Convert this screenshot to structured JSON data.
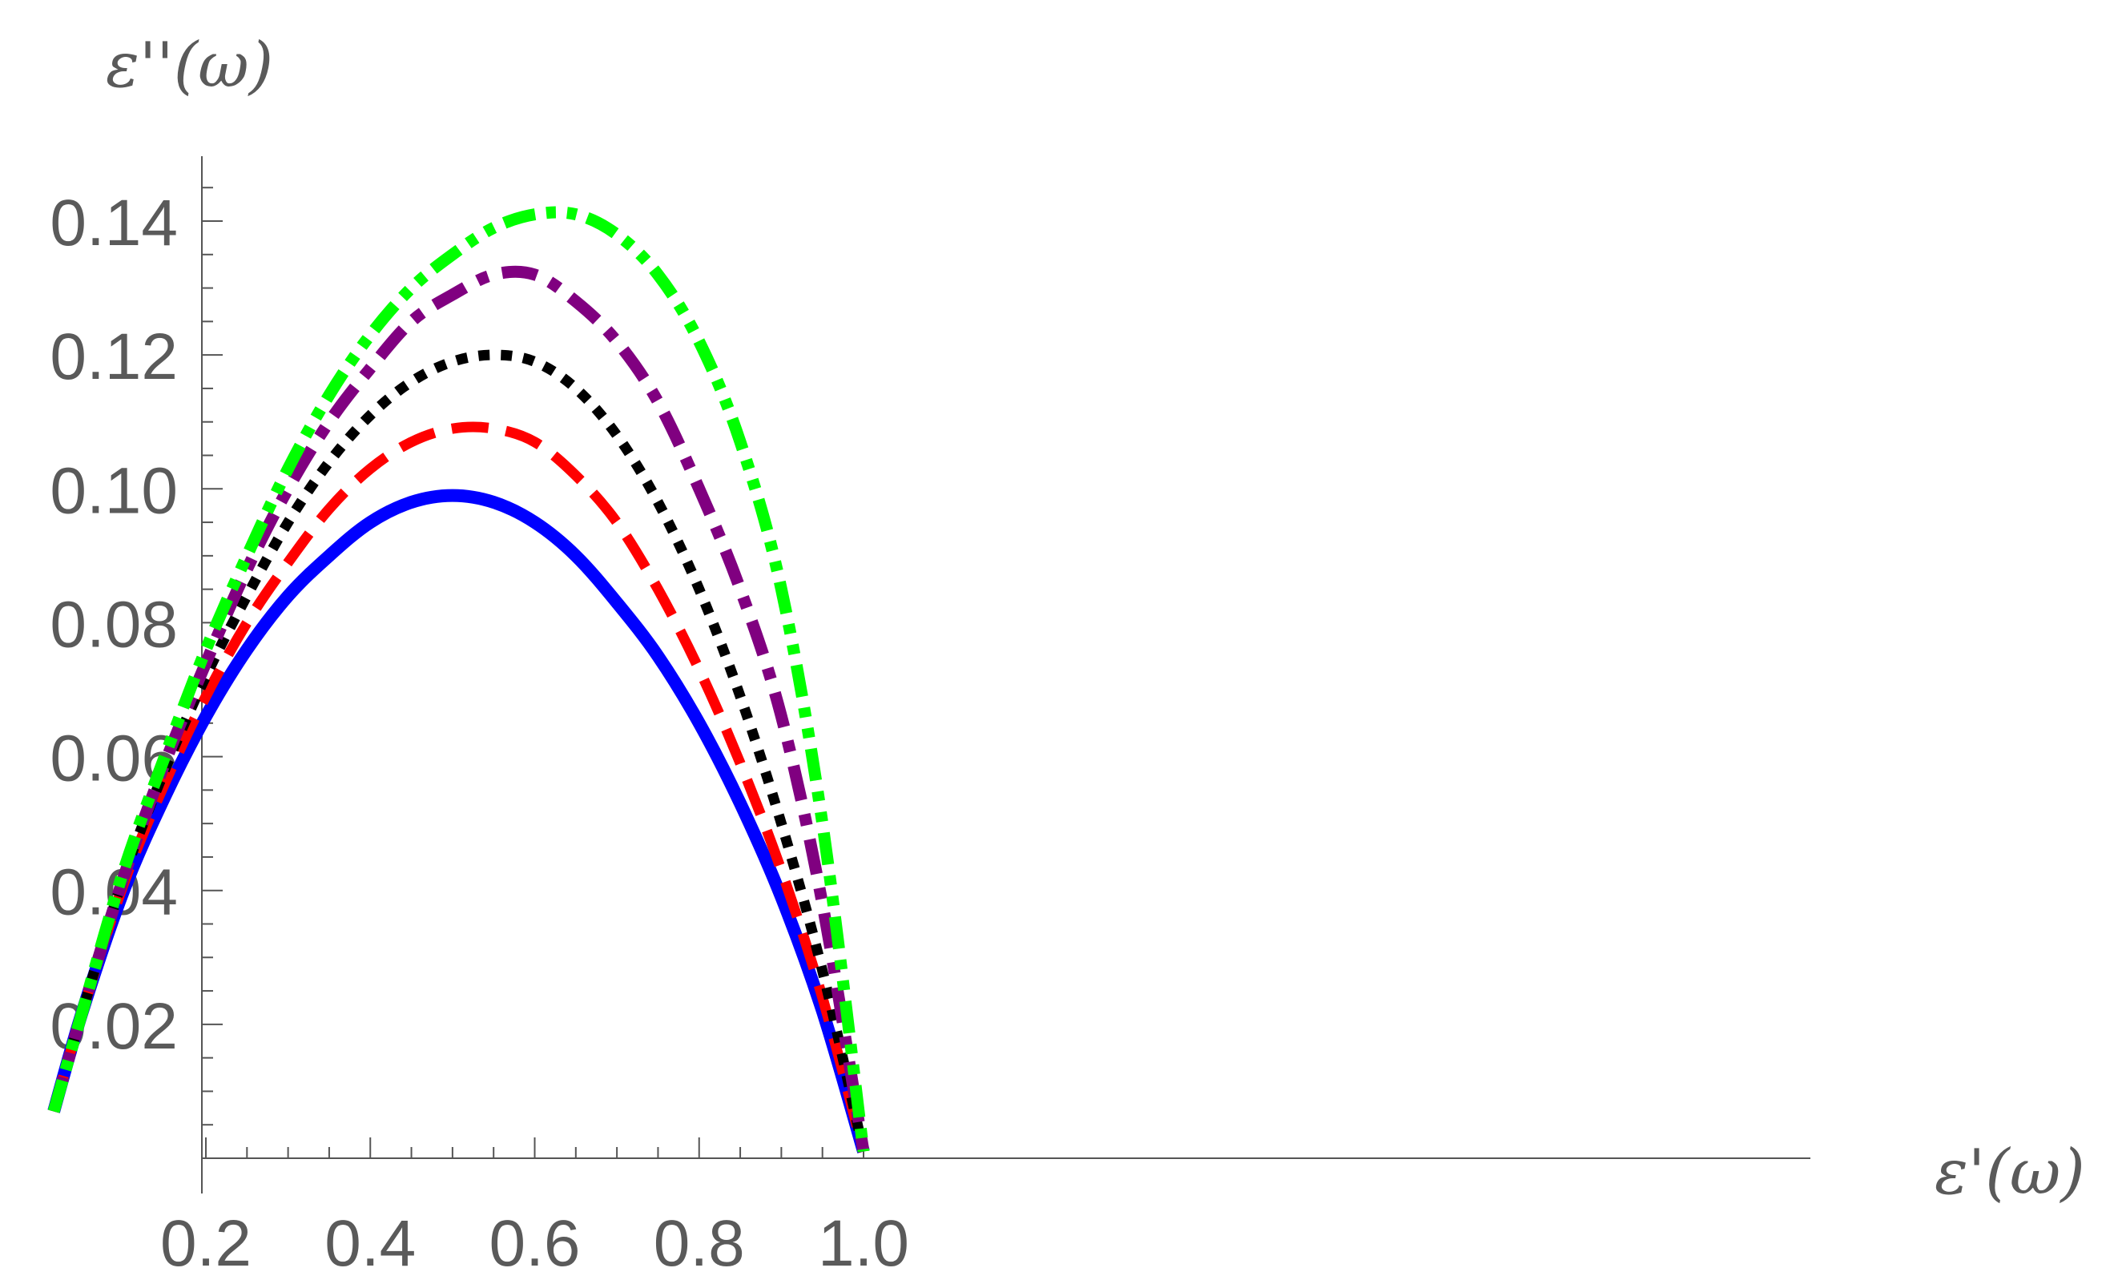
{
  "chart_data": {
    "type": "line",
    "xlabel": "ε'(ω)",
    "ylabel": "ε''(ω)",
    "xlim": [
      0,
      1.0
    ],
    "ylim": [
      0,
      0.15
    ],
    "xticks": [
      "0.2",
      "0.4",
      "0.6",
      "0.8",
      "1.0"
    ],
    "yticks": [
      "0.02",
      "0.04",
      "0.06",
      "0.08",
      "0.10",
      "0.12",
      "0.14"
    ],
    "grid": false,
    "series": [
      {
        "color": "#0000ff",
        "style": "solid",
        "x": [
          0.015,
          0.05,
          0.1,
          0.15,
          0.2,
          0.25,
          0.3,
          0.35,
          0.4,
          0.45,
          0.5,
          0.55,
          0.6,
          0.65,
          0.7,
          0.75,
          0.8,
          0.85,
          0.9,
          0.95,
          1.0
        ],
        "y": [
          0.007,
          0.022,
          0.04,
          0.054,
          0.066,
          0.076,
          0.084,
          0.09,
          0.095,
          0.098,
          0.099,
          0.098,
          0.095,
          0.09,
          0.083,
          0.075,
          0.065,
          0.053,
          0.039,
          0.022,
          0.001
        ]
      },
      {
        "color": "#ff0000",
        "style": "dashed",
        "x": [
          0.015,
          0.05,
          0.1,
          0.15,
          0.2,
          0.25,
          0.3,
          0.35,
          0.4,
          0.45,
          0.5,
          0.55,
          0.6,
          0.65,
          0.7,
          0.75,
          0.8,
          0.85,
          0.9,
          0.95,
          1.0
        ],
        "y": [
          0.007,
          0.022,
          0.041,
          0.056,
          0.069,
          0.08,
          0.089,
          0.097,
          0.103,
          0.107,
          0.109,
          0.109,
          0.107,
          0.102,
          0.095,
          0.085,
          0.073,
          0.059,
          0.043,
          0.024,
          0.001
        ]
      },
      {
        "color": "#000000",
        "style": "dotted",
        "x": [
          0.015,
          0.05,
          0.1,
          0.15,
          0.2,
          0.25,
          0.3,
          0.35,
          0.4,
          0.45,
          0.5,
          0.55,
          0.6,
          0.65,
          0.7,
          0.75,
          0.8,
          0.85,
          0.9,
          0.95,
          1.0
        ],
        "y": [
          0.007,
          0.022,
          0.042,
          0.058,
          0.072,
          0.084,
          0.095,
          0.104,
          0.111,
          0.116,
          0.119,
          0.12,
          0.119,
          0.115,
          0.108,
          0.098,
          0.085,
          0.069,
          0.05,
          0.028,
          0.001
        ]
      },
      {
        "color": "#800080",
        "style": "dashdot",
        "x": [
          0.015,
          0.05,
          0.1,
          0.15,
          0.2,
          0.25,
          0.3,
          0.35,
          0.4,
          0.45,
          0.5,
          0.55,
          0.6,
          0.65,
          0.7,
          0.75,
          0.8,
          0.85,
          0.9,
          0.95,
          1.0
        ],
        "y": [
          0.007,
          0.022,
          0.042,
          0.059,
          0.074,
          0.088,
          0.1,
          0.11,
          0.118,
          0.125,
          0.129,
          0.132,
          0.132,
          0.128,
          0.122,
          0.113,
          0.1,
          0.085,
          0.066,
          0.038,
          0.001
        ]
      },
      {
        "color": "#00ff00",
        "style": "dashdotdot",
        "x": [
          0.015,
          0.05,
          0.1,
          0.15,
          0.2,
          0.25,
          0.3,
          0.35,
          0.4,
          0.45,
          0.5,
          0.55,
          0.6,
          0.65,
          0.7,
          0.75,
          0.8,
          0.85,
          0.9,
          0.95,
          1.0
        ],
        "y": [
          0.007,
          0.022,
          0.043,
          0.06,
          0.076,
          0.09,
          0.103,
          0.114,
          0.123,
          0.13,
          0.135,
          0.139,
          0.141,
          0.141,
          0.138,
          0.132,
          0.122,
          0.107,
          0.085,
          0.05,
          0.001
        ]
      }
    ]
  }
}
